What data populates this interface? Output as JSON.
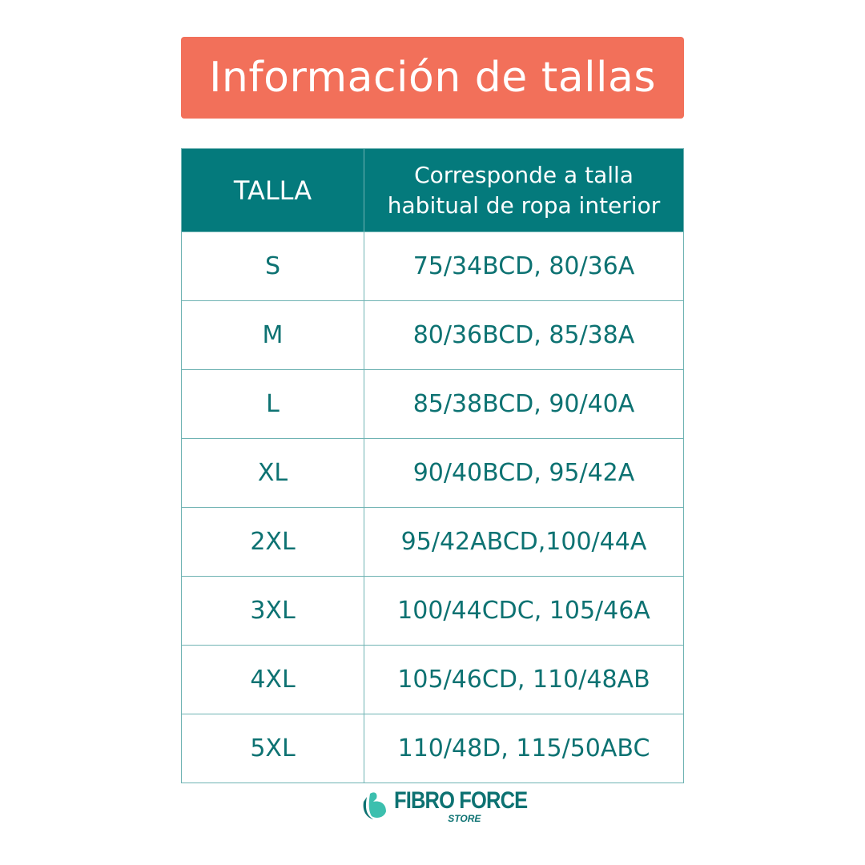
{
  "title": "Información de tallas",
  "table": {
    "headers": [
      "TALLA",
      "Corresponde a talla",
      "habitual de ropa interior"
    ],
    "rows": [
      {
        "size": "S",
        "equivalent": "75/34BCD, 80/36A"
      },
      {
        "size": "M",
        "equivalent": "80/36BCD, 85/38A"
      },
      {
        "size": "L",
        "equivalent": "85/38BCD, 90/40A"
      },
      {
        "size": "XL",
        "equivalent": "90/40BCD, 95/42A"
      },
      {
        "size": "2XL",
        "equivalent": "95/42ABCD,100/44A"
      },
      {
        "size": "3XL",
        "equivalent": "100/44CDC, 105/46A"
      },
      {
        "size": "4XL",
        "equivalent": "105/46CD, 110/48AB"
      },
      {
        "size": "5XL",
        "equivalent": "110/48D, 115/50ABC"
      }
    ]
  },
  "logo": {
    "name": "FIBRO FORCE",
    "sub": "STORE",
    "icon": "flexed-arm-icon"
  },
  "colors": {
    "title_bg": "#F2705A",
    "header_bg": "#047A7C",
    "text": "#0d7272"
  }
}
